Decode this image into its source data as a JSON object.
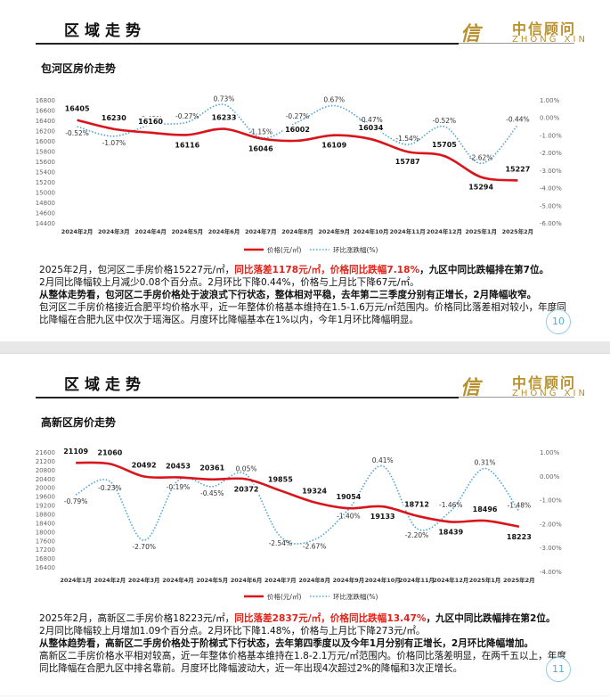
{
  "slides": [
    {
      "header_title": "区域走势",
      "logo_mark": "信",
      "logo_cn": "中信顾问",
      "logo_en": "ZHONG XIN",
      "subtitle": "包河区房价走势",
      "page_number": "10",
      "chart_data": {
        "type": "line",
        "categories": [
          "2024年2月",
          "2024年3月",
          "2024年4月",
          "2024年5月",
          "2024年6月",
          "2024年7月",
          "2024年8月",
          "2024年9月",
          "2024年10月",
          "2024年11月",
          "2024年12月",
          "2025年1月",
          "2025年2月"
        ],
        "left_ylim": [
          14400,
          16800
        ],
        "left_ticks": [
          "16800",
          "16600",
          "16400",
          "16200",
          "16000",
          "15800",
          "15600",
          "15400",
          "15200",
          "15000",
          "14800",
          "14600",
          "14400"
        ],
        "right_ylim": [
          -6.0,
          1.0
        ],
        "right_ticks": [
          "1.00%",
          "0.00%",
          "-1.00%",
          "-2.00%",
          "-3.00%",
          "-4.00%",
          "-5.00%",
          "-6.00%"
        ],
        "series": [
          {
            "name": "价格(元/㎡)",
            "axis": "left",
            "color": "#d9141b",
            "values": [
              16405,
              16230,
              16160,
              16116,
              16233,
              16046,
              16002,
              16109,
              16034,
              15787,
              15705,
              15294,
              15227
            ],
            "labels": [
              "16405",
              "16230",
              "16160",
              "16116",
              "16233",
              "16046",
              "16002",
              "16109",
              "16034",
              "15787",
              "15705",
              "15294",
              "15227"
            ]
          },
          {
            "name": "环比涨跌幅(%)",
            "axis": "right",
            "color": "#4aa5d6",
            "values": [
              -0.52,
              -1.07,
              -0.43,
              -0.27,
              0.73,
              -1.15,
              -0.27,
              0.67,
              -0.47,
              -1.54,
              -0.52,
              -2.62,
              -0.44
            ],
            "labels": [
              "-0.52%",
              "-1.07%",
              "-0.43%",
              "-0.27%",
              "0.73%",
              "-1.15%",
              "-0.27%",
              "0.67%",
              "-0.47%",
              "-1.54%",
              "-0.52%",
              "-2.62%",
              "-0.44%"
            ]
          }
        ],
        "legend_position": "bottom"
      },
      "text": {
        "l1_a": "2025年2月，包河区二手房价格15227元/㎡，",
        "l1_hl": "同比落差1178元/㎡，价格同比跌幅7.18%",
        "l1_b": "，九区中同比跌幅排在第7位。",
        "l2": "2月同比降幅较上月减少0.08个百分点。2月环比下降0.44%，价格与上月比下降67元/㎡。",
        "l3": "从整体走势看，包河区二手房价格处于波浪式下行状态，整体相对平稳，去年第二三季度分别有正增长，2月降幅收窄。",
        "l4": "包河区二手房价格接近合肥平均价格水平，近一年整体价格基本维持在1.5-1.6万元/㎡范围内。价格同比落差相对较小，年度同比降幅在合肥九区中仅次于瑶海区。月度环比降幅基本在1%以内，今年1月环比降幅明显。"
      }
    },
    {
      "header_title": "区域走势",
      "logo_mark": "信",
      "logo_cn": "中信顾问",
      "logo_en": "ZHONG XIN",
      "subtitle": "高新区房价走势",
      "page_number": "11",
      "chart_data": {
        "type": "line",
        "categories": [
          "2024年1月",
          "2024年2月",
          "2024年3月",
          "2024年4月",
          "2024年5月",
          "2024年6月",
          "2024年7月",
          "2024年8月",
          "2024年9月",
          "2024年10月",
          "2024年11月",
          "2024年12月",
          "2025年1月",
          "2025年2月"
        ],
        "left_ylim": [
          16200,
          21600
        ],
        "left_ticks": [
          "21600",
          "21100",
          "20600",
          "20100",
          "19600",
          "19100",
          "18600",
          "18100",
          "17600",
          "17100",
          "16600",
          "16100"
        ],
        "left_ticks_real": [
          "21600",
          "21400",
          "21200",
          "21000",
          "20800",
          "20600",
          "20400",
          "20200",
          "20000",
          "19800",
          "19600",
          "19400",
          "19200",
          "19000",
          "18800",
          "18600",
          "18400",
          "18200",
          "18000",
          "17800",
          "17600",
          "17400",
          "17200",
          "17000",
          "16800",
          "16600",
          "16400",
          "16200"
        ],
        "right_ylim": [
          -4.0,
          1.0
        ],
        "right_ticks": [
          "1.00%",
          "0.00%",
          "-1.00%",
          "-2.00%",
          "-3.00%",
          "-4.00%"
        ],
        "series": [
          {
            "name": "价格(元/㎡)",
            "axis": "left",
            "color": "#d9141b",
            "values": [
              21109,
              21060,
              20492,
              20453,
              20361,
              20372,
              19855,
              19324,
              19054,
              19133,
              18712,
              18439,
              18496,
              18223
            ],
            "labels": [
              "21109",
              "21060",
              "20492",
              "20453",
              "20361",
              "20372",
              "19855",
              "19324",
              "19054",
              "19133",
              "18712",
              "18439",
              "18496",
              "18223"
            ]
          },
          {
            "name": "环比涨跌幅(%)",
            "axis": "right",
            "color": "#4aa5d6",
            "values": [
              -0.79,
              -0.23,
              -2.7,
              -0.19,
              -0.45,
              0.05,
              -2.54,
              -2.67,
              -1.4,
              0.41,
              -2.2,
              -1.46,
              0.31,
              -1.48
            ],
            "labels": [
              "-0.79%",
              "-0.23%",
              "-2.70%",
              "-0.19%",
              "-0.45%",
              "0.05%",
              "-2.54%",
              "-2.67%",
              "-1.40%",
              "0.41%",
              "-2.20%",
              "-1.46%",
              "0.31%",
              "-1.48%"
            ]
          }
        ],
        "legend_position": "bottom"
      },
      "text": {
        "l1_a": "2025年2月，高新区二手房价格18223元/㎡，",
        "l1_hl": "同比落差2837元/㎡，价格同比跌幅13.47%",
        "l1_b": "，九区中同比跌幅排在第2位。",
        "l2": "2月同比降幅较上月增加1.09个百分点。2月环比下降1.48%，价格与上月比下降273元/㎡。",
        "l3": "从整体趋势看，高新区二手房价格处于阶梯式下行状态，去年第四季度以及今年1月分别有正增长，2月环比降幅增加。",
        "l4": "高新区二手房价格水平相对较高，近一年整体价格基本维持在1.8-2.1万元/㎡范围内。价格同比落差明显，在两千五以上，年度同比降幅在合肥九区中排名靠前。月度环比降幅波动大，近一年出现4次超过2%的降幅和3次正增长。"
      }
    }
  ]
}
